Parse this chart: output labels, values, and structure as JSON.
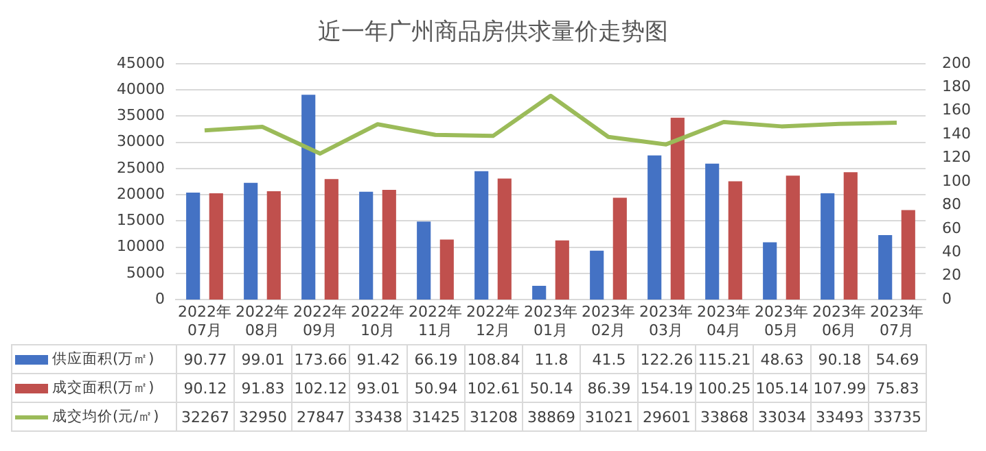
{
  "chart_data": {
    "type": "bar",
    "title": "近一年广州商品房供求量价走势图",
    "categories": [
      "2022年07月",
      "2022年08月",
      "2022年09月",
      "2022年10月",
      "2022年11月",
      "2022年12月",
      "2023年01月",
      "2023年02月",
      "2023年03月",
      "2023年04月",
      "2023年05月",
      "2023年06月",
      "2023年07月"
    ],
    "series": [
      {
        "name": "供应面积(万㎡)",
        "color": "#4472c4",
        "axis": "y2",
        "values": [
          90.77,
          99.01,
          173.66,
          91.42,
          66.19,
          108.84,
          11.8,
          41.5,
          122.26,
          115.21,
          48.63,
          90.18,
          54.69
        ]
      },
      {
        "name": "成交面积(万㎡)",
        "color": "#c0504d",
        "axis": "y2",
        "values": [
          90.12,
          91.83,
          102.12,
          93.01,
          50.94,
          102.61,
          50.14,
          86.39,
          154.19,
          100.25,
          105.14,
          107.99,
          75.83
        ]
      },
      {
        "name": "成交均价(元/㎡)",
        "type": "line",
        "color": "#9bbb59",
        "axis": "y",
        "marker": "none",
        "values": [
          32267,
          32950,
          27847,
          33438,
          31425,
          31208,
          38869,
          31021,
          29601,
          33868,
          33034,
          33493,
          33735
        ]
      }
    ],
    "ylim": [
      0,
      45000
    ],
    "yticks": [
      0,
      5000,
      10000,
      15000,
      20000,
      25000,
      30000,
      35000,
      40000,
      45000
    ],
    "y2lim": [
      0,
      200
    ],
    "y2ticks": [
      0,
      20,
      40,
      60,
      80,
      100,
      120,
      140,
      160,
      180,
      200
    ],
    "grid": "y",
    "legend": "bottom",
    "data_labels": true
  }
}
